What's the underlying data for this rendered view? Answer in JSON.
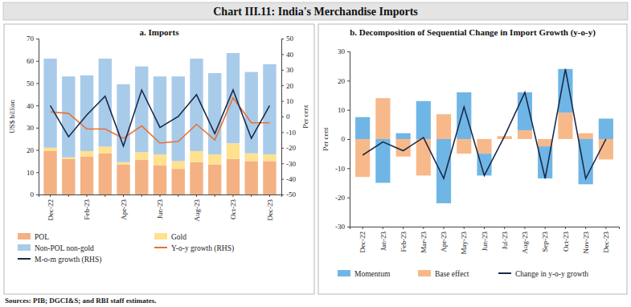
{
  "title": "Chart III.11: India's Merchandise Imports",
  "source": "Sources: PIB; DGCI&S; and RBI staff estimates.",
  "chart_data": [
    {
      "type": "bar",
      "stacked": true,
      "grid": false,
      "legend": "bottom",
      "title": "a. Imports",
      "y_label": "US$ billion",
      "y2_label": "Per cent",
      "categories": [
        "Dec-22",
        null,
        "Feb-23",
        null,
        "Apr-23",
        null,
        "Jun-23",
        null,
        "Aug-23",
        null,
        "Oct-23",
        null,
        "Dec-23"
      ],
      "ylim": [
        0,
        70
      ],
      "yticks": [
        0,
        10,
        20,
        30,
        40,
        50,
        60,
        70
      ],
      "y2lim": [
        -50,
        50
      ],
      "y2ticks": [
        -50,
        -40,
        -30,
        -20,
        -10,
        0,
        10,
        20,
        30,
        40,
        50
      ],
      "series": [
        {
          "name": "POL",
          "type": "bar",
          "color": "#F4B183",
          "values": [
            19.5,
            16,
            17,
            18.5,
            13.5,
            15.5,
            13,
            11.5,
            14.5,
            13.5,
            16,
            15,
            15
          ]
        },
        {
          "name": "Gold",
          "type": "bar",
          "color": "#FFE18F",
          "values": [
            1.5,
            0.7,
            2.5,
            3,
            1,
            3.5,
            5,
            3.5,
            5,
            4.5,
            7,
            3.5,
            3
          ]
        },
        {
          "name": "Non-POL non-gold",
          "type": "bar",
          "color": "#A9CBEA",
          "values": [
            40,
            36.3,
            34,
            39.5,
            35,
            38.5,
            35,
            38,
            41.5,
            36.5,
            40.5,
            36.5,
            40.5
          ]
        },
        {
          "name": "Y-o-y growth (RHS)",
          "type": "line",
          "axis": "y2",
          "color": "#E97132",
          "values": [
            3,
            2,
            -8,
            -8,
            -14,
            -6,
            -17,
            -16,
            -5,
            -15,
            12,
            -4,
            -4
          ]
        },
        {
          "name": "M-o-m growth (RHS)",
          "type": "line",
          "axis": "y2",
          "color": "#1B2A4A",
          "values": [
            7,
            -13,
            1,
            13,
            -19,
            17,
            -7,
            0,
            14,
            -11,
            17,
            -14,
            7
          ]
        }
      ]
    },
    {
      "type": "bar",
      "stacked": true,
      "grid": false,
      "legend": "bottom",
      "title": "b. Decomposition of Sequential Change in Import Growth (y-o-y)",
      "y_label": "Per cent",
      "categories": [
        "Dec-22",
        "Jan-23",
        "Feb-23",
        "Mar-23",
        "Apr-23",
        "May-23",
        "Jun-23",
        "Jul-23",
        "Aug-23",
        "Sep-23",
        "Oct-23",
        "Nov-23",
        "Dec-23"
      ],
      "ylim": [
        -30,
        30
      ],
      "yticks": [
        -30,
        -20,
        -10,
        0,
        10,
        20,
        30
      ],
      "series": [
        {
          "name": "Momentum",
          "type": "bar",
          "color": "#6FB6E6",
          "values": [
            7.5,
            -15,
            2,
            13,
            -22,
            16,
            -7.5,
            0,
            13,
            -11,
            15,
            -15.5,
            7
          ]
        },
        {
          "name": "Base effect",
          "type": "bar",
          "color": "#F8B98A",
          "values": [
            -13,
            14,
            -6,
            -12.5,
            8.5,
            -5,
            -5,
            1,
            3,
            -2.5,
            9,
            2,
            -7
          ]
        },
        {
          "name": "Change in y-o-y growth",
          "type": "line",
          "color": "#1B2A4A",
          "values": [
            -5.5,
            -1,
            -4,
            0.5,
            -13.5,
            11,
            -12.5,
            1,
            16,
            -13.5,
            24,
            -13.5,
            0
          ]
        }
      ]
    }
  ]
}
